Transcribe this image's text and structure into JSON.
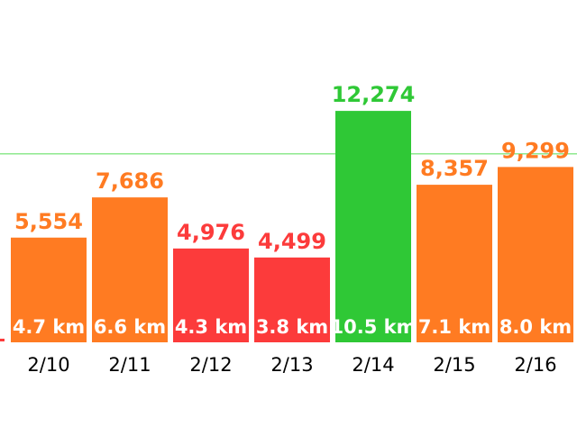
{
  "chart_data": {
    "type": "bar",
    "categories": [
      "2/10",
      "2/11",
      "2/12",
      "2/13",
      "2/14",
      "2/15",
      "2/16"
    ],
    "values": [
      5554,
      7686,
      4976,
      4499,
      12274,
      8357,
      9299
    ],
    "value_labels": [
      "5,554",
      "7,686",
      "4,976",
      "4,499",
      "12,274",
      "8,357",
      "9,299"
    ],
    "distance_labels": [
      "4.7 km",
      "6.6 km",
      "4.3 km",
      "3.8 km",
      "10.5 km",
      "7.1 km",
      "8.0 km"
    ],
    "status": [
      "medium",
      "medium",
      "low",
      "low",
      "goal",
      "medium",
      "medium"
    ],
    "goal_value": 10000,
    "ylim": [
      0,
      16000
    ],
    "colors": {
      "medium": "#ff7b22",
      "low": "#fc3b3b",
      "goal": "#2fc836",
      "goal_line": "#8ee88e",
      "low_marker": "#fc3b3b"
    }
  }
}
